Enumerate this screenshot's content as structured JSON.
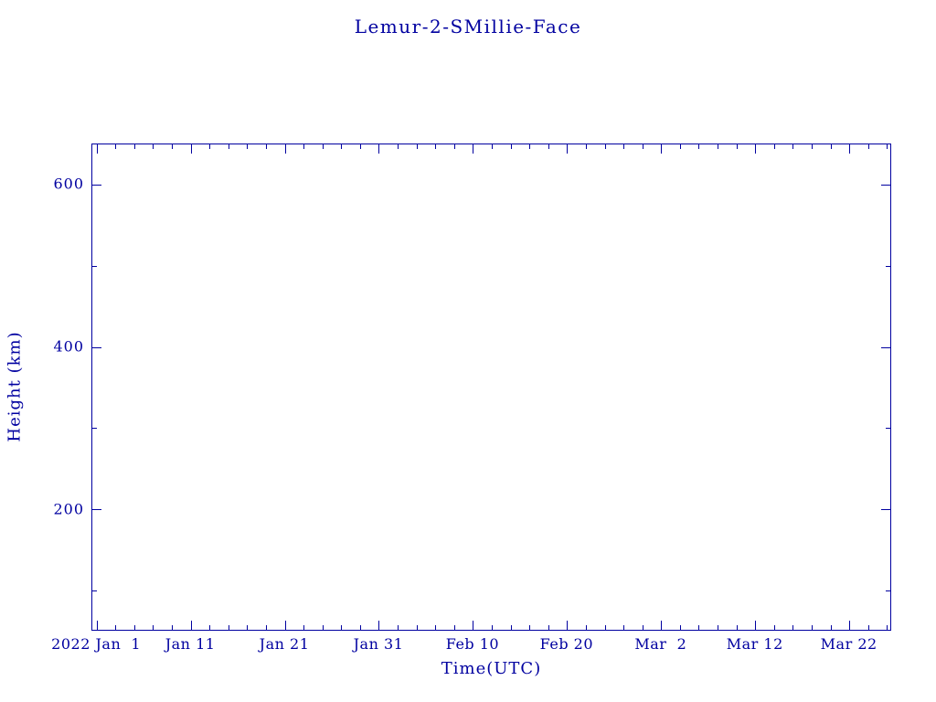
{
  "chart_data": {
    "type": "line",
    "title": "Lemur-2-SMillie-Face",
    "xlabel": "Time(UTC)",
    "ylabel": "Height (km)",
    "series": [],
    "accent_color": "#0000a0",
    "grid": false,
    "legend": false,
    "x_axis": {
      "unit": "days since 2022 Jan 1",
      "range": [
        -0.5,
        84.5
      ],
      "major_ticks": [
        0,
        10,
        20,
        30,
        40,
        50,
        60,
        70,
        80
      ],
      "major_labels": [
        "2022 Jan  1",
        "Jan 11",
        "Jan 21",
        "Jan 31",
        "Feb 10",
        "Feb 20",
        "Mar  2",
        "Mar 12",
        "Mar 22"
      ],
      "minor_step": 2
    },
    "y_axis": {
      "range": [
        50,
        650
      ],
      "major_ticks": [
        200,
        400,
        600
      ],
      "major_labels": [
        "200",
        "400",
        "600"
      ],
      "minor_ticks": [
        100,
        300,
        500
      ]
    }
  }
}
